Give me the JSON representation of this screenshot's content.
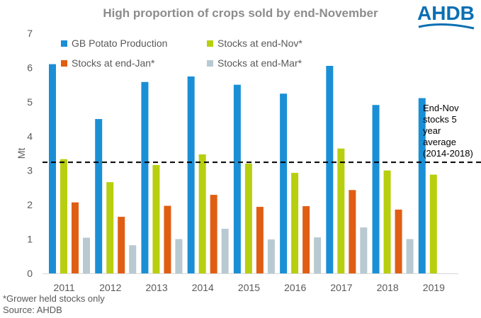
{
  "header": {
    "title": "High proportion of crops sold by end-November",
    "logo_text": "AHDB"
  },
  "footnotes": {
    "note": "*Grower held stocks only",
    "source": "Source: AHDB"
  },
  "annotation": {
    "lines": [
      "End-Nov",
      "stocks 5",
      "year",
      "average",
      "(2014-2018)"
    ]
  },
  "colors": {
    "production": "#1a8fd6",
    "nov": "#b7cf0f",
    "jan": "#e05e14",
    "mar": "#b8c9d1",
    "title": "#8c8c8c",
    "axis_text": "#595959",
    "logo": "#0a6fb3"
  },
  "chart_data": {
    "type": "bar",
    "ylabel": "Mt",
    "ylim": [
      0,
      7
    ],
    "yticks": [
      0,
      1,
      2,
      3,
      4,
      5,
      6,
      7
    ],
    "categories": [
      "2011",
      "2012",
      "2013",
      "2014",
      "2015",
      "2016",
      "2017",
      "2018",
      "2019"
    ],
    "series": [
      {
        "name": "GB Potato Production",
        "values": [
          6.1,
          4.5,
          5.58,
          5.74,
          5.5,
          5.24,
          6.05,
          4.91,
          5.11
        ]
      },
      {
        "name": "Stocks at end-Nov*",
        "values": [
          3.33,
          2.66,
          3.16,
          3.47,
          3.2,
          2.93,
          3.64,
          3.0,
          2.88
        ]
      },
      {
        "name": "Stocks at end-Jan*",
        "values": [
          2.07,
          1.65,
          1.97,
          2.29,
          1.94,
          1.96,
          2.43,
          1.86,
          null
        ]
      },
      {
        "name": "Stocks at end-Mar*",
        "values": [
          1.04,
          0.82,
          1.0,
          1.3,
          0.99,
          1.05,
          1.34,
          1.0,
          null
        ]
      }
    ],
    "reference_line": {
      "value": 3.24,
      "style": "dashed"
    },
    "legend_position": "top",
    "grid": false
  }
}
